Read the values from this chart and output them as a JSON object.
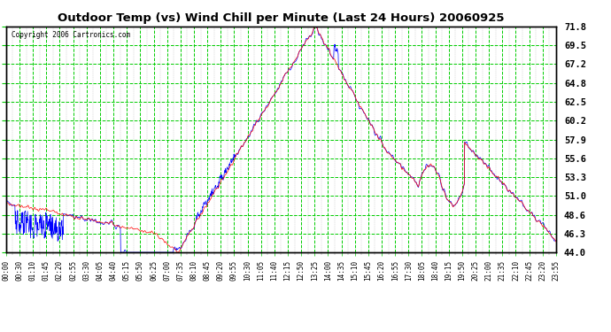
{
  "title": "Outdoor Temp (vs) Wind Chill per Minute (Last 24 Hours) 20060925",
  "copyright": "Copyright 2006 Cartronics.com",
  "y_ticks": [
    44.0,
    46.3,
    48.6,
    51.0,
    53.3,
    55.6,
    57.9,
    60.2,
    62.5,
    64.8,
    67.2,
    69.5,
    71.8
  ],
  "y_min": 44.0,
  "y_max": 71.8,
  "x_labels": [
    "00:00",
    "00:30",
    "01:10",
    "01:45",
    "02:20",
    "02:55",
    "03:30",
    "04:05",
    "04:40",
    "05:15",
    "05:50",
    "06:25",
    "07:00",
    "07:35",
    "08:10",
    "08:45",
    "09:20",
    "09:55",
    "10:30",
    "11:05",
    "11:40",
    "12:15",
    "12:50",
    "13:25",
    "14:00",
    "14:35",
    "15:10",
    "15:45",
    "16:20",
    "16:55",
    "17:30",
    "18:05",
    "18:40",
    "19:15",
    "19:50",
    "20:25",
    "21:00",
    "21:35",
    "22:10",
    "22:45",
    "23:20",
    "23:55"
  ],
  "plot_bg_color": "#ffffff",
  "fig_bg_color": "#ffffff",
  "grid_color_major": "#00cc00",
  "grid_color_minor": "#aaaaaa",
  "line_color_red": "#ff0000",
  "line_color_blue": "#0000ff",
  "title_color": "#000000",
  "tick_label_color": "#000000"
}
